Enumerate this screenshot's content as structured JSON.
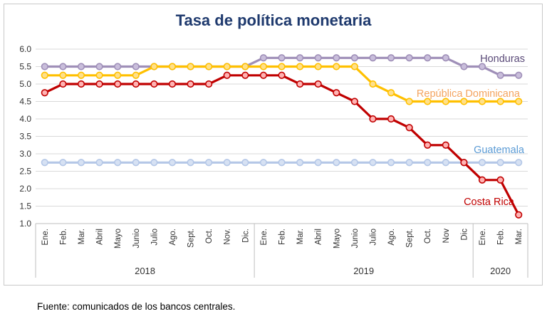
{
  "chart_data": {
    "type": "line",
    "title": "Tasa de política monetaria",
    "xlabel": "",
    "ylabel": "",
    "ylim": [
      1.0,
      6.0
    ],
    "yticks": [
      "1.0",
      "1.5",
      "2.0",
      "2.5",
      "3.0",
      "3.5",
      "4.0",
      "4.5",
      "5.0",
      "5.5",
      "6.0"
    ],
    "grid": "horizontal",
    "legend": "inline labels at line ends",
    "categories": [
      "Ene.",
      "Feb.",
      "Mar.",
      "Abril",
      "Mayo",
      "Junio",
      "Julio",
      "Ago.",
      "Sept.",
      "Oct.",
      "Nov.",
      "Dic.",
      "Ene.",
      "Feb.",
      "Mar.",
      "Abril",
      "Mayo",
      "Junio",
      "Julio",
      "Ago.",
      "Sept.",
      "Oct.",
      "Nov",
      "Dic",
      "Ene.",
      "Feb.",
      "Mar."
    ],
    "years": [
      {
        "label": "2018",
        "count": 12
      },
      {
        "label": "2019",
        "count": 12
      },
      {
        "label": "2020",
        "count": 3
      }
    ],
    "series": [
      {
        "name": "Honduras",
        "color": "#9f8fb8",
        "marker_fill": "#c9bedb",
        "values": [
          5.5,
          5.5,
          5.5,
          5.5,
          5.5,
          5.5,
          5.5,
          5.5,
          5.5,
          5.5,
          5.5,
          5.5,
          5.75,
          5.75,
          5.75,
          5.75,
          5.75,
          5.75,
          5.75,
          5.75,
          5.75,
          5.75,
          5.75,
          5.5,
          5.5,
          5.25,
          5.25
        ]
      },
      {
        "name": "República Dominicana",
        "color": "#ffc000",
        "marker_fill": "#ffe08a",
        "values": [
          5.25,
          5.25,
          5.25,
          5.25,
          5.25,
          5.25,
          5.5,
          5.5,
          5.5,
          5.5,
          5.5,
          5.5,
          5.5,
          5.5,
          5.5,
          5.5,
          5.5,
          5.5,
          5.0,
          4.75,
          4.5,
          4.5,
          4.5,
          4.5,
          4.5,
          4.5,
          4.5
        ]
      },
      {
        "name": "Guatemala",
        "color": "#b4c7e7",
        "marker_fill": "#d6e1f3",
        "values": [
          2.75,
          2.75,
          2.75,
          2.75,
          2.75,
          2.75,
          2.75,
          2.75,
          2.75,
          2.75,
          2.75,
          2.75,
          2.75,
          2.75,
          2.75,
          2.75,
          2.75,
          2.75,
          2.75,
          2.75,
          2.75,
          2.75,
          2.75,
          2.75,
          2.75,
          2.75,
          2.75
        ]
      },
      {
        "name": "Costa Rica",
        "color": "#c00000",
        "marker_fill": "#ffb3b3",
        "values": [
          4.75,
          5.0,
          5.0,
          5.0,
          5.0,
          5.0,
          5.0,
          5.0,
          5.0,
          5.0,
          5.25,
          5.25,
          5.25,
          5.25,
          5.0,
          5.0,
          4.75,
          4.5,
          4.0,
          4.0,
          3.75,
          3.25,
          3.25,
          2.75,
          2.25,
          2.25,
          1.25
        ]
      }
    ],
    "label_colors": {
      "Honduras": "#5a4a78",
      "República Dominicana": "#f4a460",
      "Guatemala": "#5b9bd5",
      "Costa Rica": "#c00000"
    }
  },
  "source_note": "Fuente: comunicados de los bancos centrales."
}
